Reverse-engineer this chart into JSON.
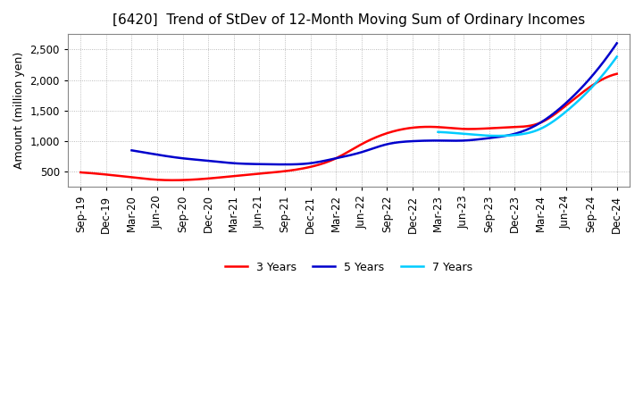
{
  "title": "[6420]  Trend of StDev of 12-Month Moving Sum of Ordinary Incomes",
  "ylabel": "Amount (million yen)",
  "title_fontsize": 11,
  "label_fontsize": 9,
  "tick_fontsize": 8.5,
  "background_color": "#ffffff",
  "grid_color": "#aaaaaa",
  "ylim": [
    250,
    2750
  ],
  "yticks": [
    500,
    1000,
    1500,
    2000,
    2500
  ],
  "x_labels": [
    "Sep-19",
    "Dec-19",
    "Mar-20",
    "Jun-20",
    "Sep-20",
    "Dec-20",
    "Mar-21",
    "Jun-21",
    "Sep-21",
    "Dec-21",
    "Mar-22",
    "Jun-22",
    "Sep-22",
    "Dec-22",
    "Mar-23",
    "Jun-23",
    "Sep-23",
    "Dec-23",
    "Mar-24",
    "Jun-24",
    "Sep-24",
    "Dec-24"
  ],
  "series": {
    "3 Years": {
      "color": "#ff0000",
      "values": [
        490,
        455,
        410,
        370,
        365,
        390,
        430,
        470,
        510,
        580,
        720,
        950,
        1130,
        1220,
        1230,
        1200,
        1210,
        1230,
        1300,
        1580,
        1900,
        2100
      ]
    },
    "5 Years": {
      "color": "#0000cc",
      "values": [
        null,
        null,
        850,
        780,
        720,
        680,
        640,
        625,
        620,
        640,
        720,
        820,
        950,
        1000,
        1010,
        1010,
        1050,
        1120,
        1300,
        1620,
        2050,
        2600
      ]
    },
    "7 Years": {
      "color": "#00ccff",
      "values": [
        null,
        null,
        null,
        null,
        null,
        null,
        null,
        null,
        null,
        null,
        null,
        null,
        null,
        null,
        1150,
        1120,
        1090,
        1100,
        1200,
        1480,
        1870,
        2380
      ]
    },
    "10 Years": {
      "color": "#008000",
      "values": [
        null,
        null,
        null,
        null,
        null,
        null,
        null,
        null,
        null,
        null,
        null,
        null,
        null,
        null,
        null,
        null,
        null,
        null,
        null,
        null,
        null,
        null
      ]
    }
  }
}
